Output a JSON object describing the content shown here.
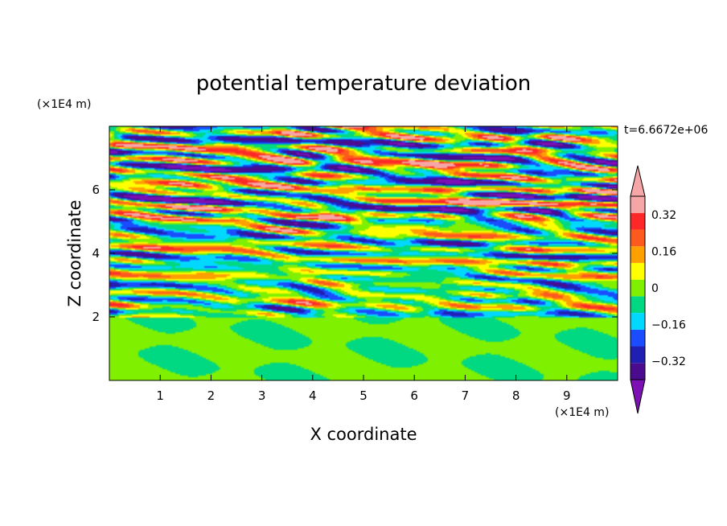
{
  "chart_data": {
    "type": "heatmap",
    "title": "potential temperature deviation",
    "xlabel": "X coordinate",
    "ylabel": "Z coordinate",
    "x_unit": "(×1E4 m)",
    "y_unit": "(×1E4 m)",
    "time_label": "t=6.6672e+06",
    "xlim": [
      0,
      10
    ],
    "ylim": [
      0,
      8
    ],
    "x_ticks": [
      1,
      2,
      3,
      4,
      5,
      6,
      7,
      8,
      9
    ],
    "y_ticks": [
      2,
      4,
      6
    ],
    "grid": false,
    "colorbar": {
      "placement": "right",
      "levels": [
        -0.48,
        -0.4,
        -0.32,
        -0.24,
        -0.16,
        -0.08,
        0,
        0.08,
        0.16,
        0.24,
        0.32,
        0.4,
        0.48
      ],
      "tick_labels": [
        "0.32",
        "0.16",
        "0",
        "−0.16",
        "−0.32"
      ],
      "tick_values": [
        0.32,
        0.16,
        0,
        -0.16,
        -0.32
      ],
      "colors": [
        "#4b0b8f",
        "#1f1fb4",
        "#1a4dff",
        "#00d8ff",
        "#00d882",
        "#7ff000",
        "#ffff00",
        "#ffa000",
        "#ff5a1e",
        "#ff2828",
        "#f6a6a6"
      ],
      "under_color": "#7c10b4",
      "over_color": "#f6a6a6"
    },
    "description_values": {
      "lower_layer_range": [
        -0.08,
        0.08
      ],
      "upper_layer_range": [
        -0.48,
        0.48
      ]
    }
  }
}
